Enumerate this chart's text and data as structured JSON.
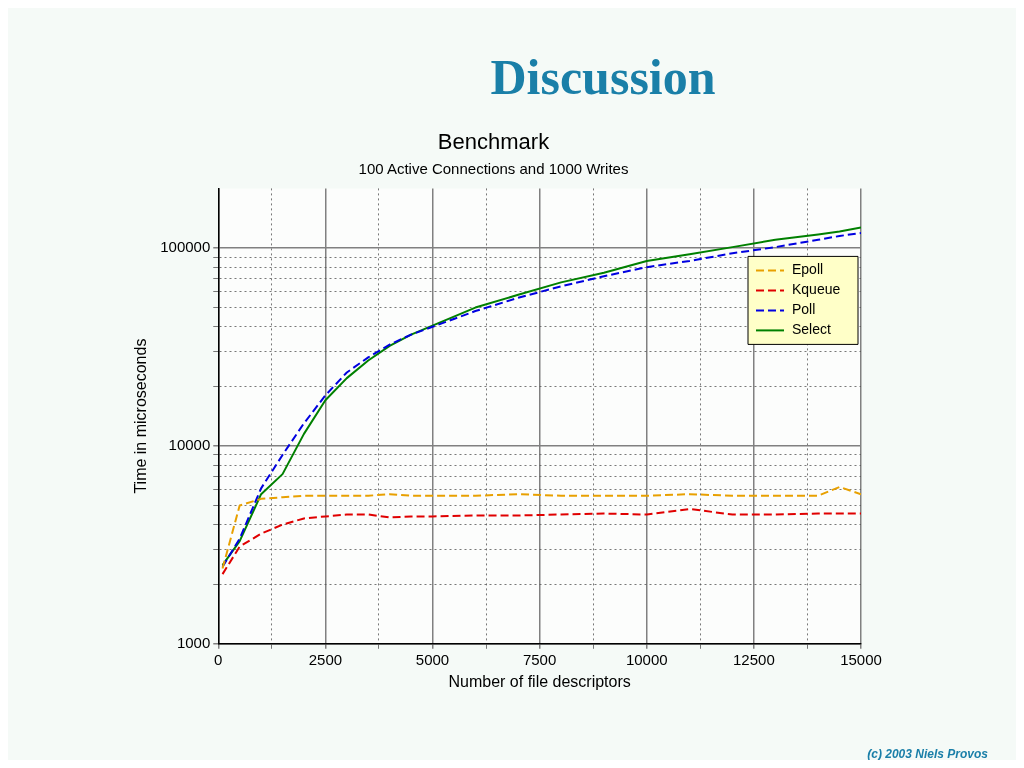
{
  "chart_data": {
    "type": "line",
    "title": "Benchmark",
    "subtitle": "100 Active Connections and 1000 Writes",
    "xlabel": "Number of file descriptors",
    "ylabel": "Time in microseconds",
    "annotations": [
      "Discussion",
      "(c) 2003 Niels Provos"
    ],
    "x": [
      100,
      500,
      1000,
      1500,
      2000,
      2500,
      3000,
      3500,
      4000,
      4500,
      5000,
      6000,
      7000,
      8000,
      9000,
      10000,
      11000,
      12000,
      13000,
      14000,
      14500,
      15000
    ],
    "series": [
      {
        "name": "Epoll",
        "color": "#e8a000",
        "line_style": "dashed",
        "values": [
          2400,
          5000,
          5400,
          5500,
          5600,
          5600,
          5600,
          5600,
          5700,
          5600,
          5600,
          5600,
          5700,
          5600,
          5600,
          5600,
          5700,
          5600,
          5600,
          5600,
          6200,
          5700
        ]
      },
      {
        "name": "Kqueue",
        "color": "#e00000",
        "line_style": "dashed",
        "values": [
          2250,
          3100,
          3600,
          4000,
          4300,
          4400,
          4500,
          4500,
          4350,
          4400,
          4400,
          4450,
          4450,
          4500,
          4550,
          4500,
          4800,
          4500,
          4500,
          4550,
          4550,
          4550
        ]
      },
      {
        "name": "Poll",
        "color": "#0000e0",
        "line_style": "dashed",
        "values": [
          2450,
          3400,
          6100,
          9000,
          13000,
          18000,
          23500,
          28000,
          32500,
          36500,
          40000,
          48000,
          56000,
          64000,
          72000,
          80000,
          86000,
          94000,
          101000,
          110000,
          115000,
          119000
        ]
      },
      {
        "name": "Select",
        "color": "#008000",
        "line_style": "solid",
        "values": [
          2500,
          3300,
          5700,
          7200,
          11500,
          17000,
          22000,
          27000,
          32000,
          36500,
          40500,
          50000,
          58000,
          67000,
          75000,
          86000,
          93000,
          101000,
          110000,
          117000,
          121000,
          127000
        ]
      }
    ],
    "log": "y",
    "xlim": [
      0,
      15000
    ],
    "ylim": [
      1000,
      200000
    ],
    "xticks": [
      0,
      {
        "value": 1250,
        "label": null
      },
      2500,
      {
        "value": 3750,
        "label": null
      },
      5000,
      {
        "value": 6250,
        "label": null
      },
      7500,
      {
        "value": 8750,
        "label": null
      },
      10000,
      {
        "value": 11250,
        "label": null
      },
      12500,
      {
        "value": 13750,
        "label": null
      },
      15000
    ],
    "yticks": [
      1000,
      {
        "value": 2000,
        "label": null
      },
      {
        "value": 3000,
        "label": null
      },
      {
        "value": 4000,
        "label": null
      },
      {
        "value": 5000,
        "label": null
      },
      {
        "value": 6000,
        "label": null
      },
      {
        "value": 7000,
        "label": null
      },
      {
        "value": 8000,
        "label": null
      },
      {
        "value": 9000,
        "label": null
      },
      10000,
      {
        "value": 20000,
        "label": null
      },
      {
        "value": 30000,
        "label": null
      },
      {
        "value": 40000,
        "label": null
      },
      {
        "value": 50000,
        "label": null
      },
      {
        "value": 60000,
        "label": null
      },
      {
        "value": 70000,
        "label": null
      },
      {
        "value": 80000,
        "label": null
      },
      {
        "value": 90000,
        "label": null
      },
      100000
    ],
    "grid": true,
    "legend": "top right",
    "marker": "none"
  }
}
